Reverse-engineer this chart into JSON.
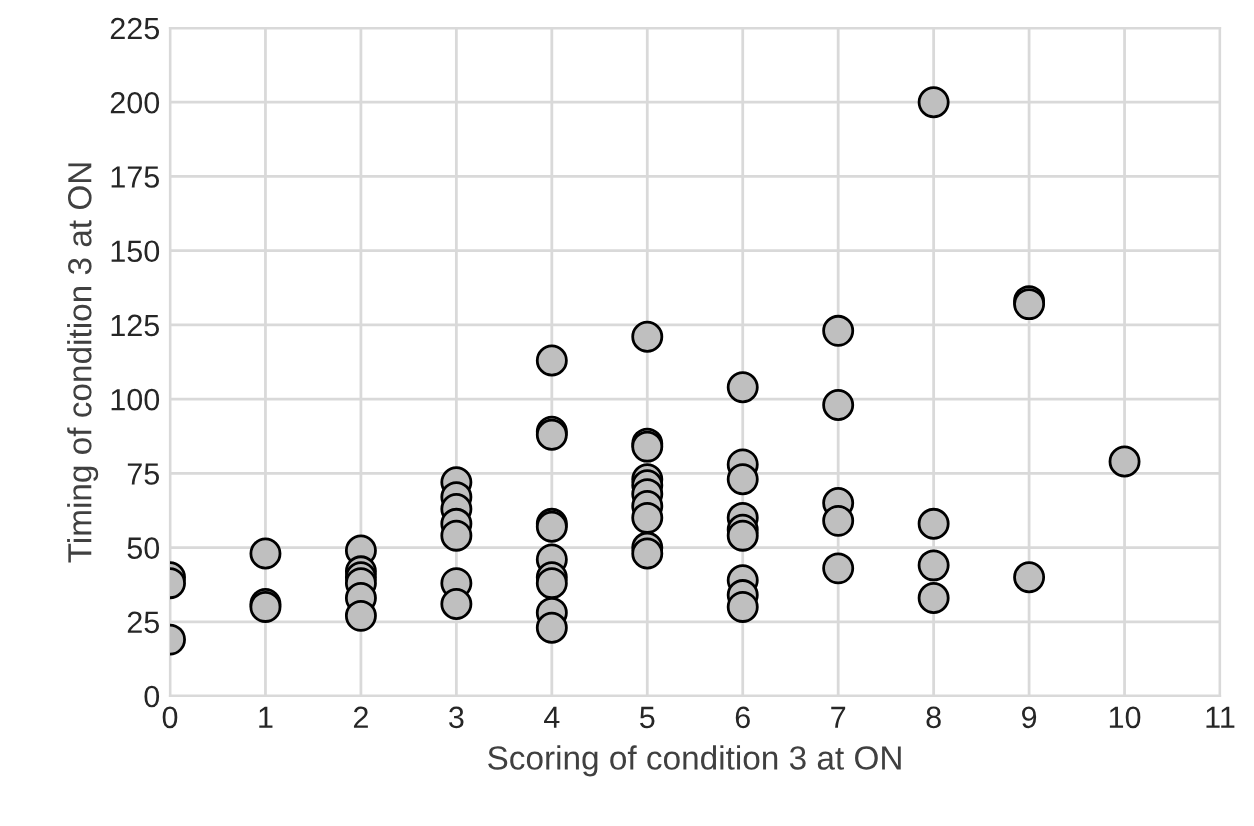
{
  "chart_data": {
    "type": "scatter",
    "xlabel": "Scoring of condition 3 at ON",
    "ylabel": "Timing of condition 3 at ON",
    "x": [
      0,
      0,
      0,
      1,
      1,
      1,
      2,
      2,
      2,
      2,
      2,
      2,
      3,
      3,
      3,
      3,
      3,
      3,
      3,
      4,
      4,
      4,
      4,
      4,
      4,
      4,
      4,
      4,
      4,
      5,
      5,
      5,
      5,
      5,
      5,
      5,
      5,
      5,
      5,
      6,
      6,
      6,
      6,
      6,
      6,
      6,
      6,
      6,
      7,
      7,
      7,
      7,
      7,
      8,
      8,
      8,
      8,
      9,
      9,
      9,
      10
    ],
    "series": [
      {
        "color": "#bfbfbf",
        "values": [
          40,
          38,
          19,
          48,
          31,
          30,
          49,
          42,
          40,
          38,
          33,
          27,
          72,
          67,
          63,
          58,
          54,
          38,
          31,
          113,
          89,
          88,
          58,
          57,
          46,
          40,
          38,
          28,
          23,
          121,
          85,
          84,
          73,
          71,
          68,
          64,
          60,
          50,
          48,
          104,
          78,
          73,
          60,
          56,
          54,
          39,
          34,
          30,
          123,
          98,
          65,
          59,
          43,
          200,
          58,
          44,
          33,
          133,
          132,
          40,
          79
        ]
      }
    ],
    "xlim": [
      0,
      11
    ],
    "xticks": [
      0,
      1,
      2,
      3,
      4,
      5,
      6,
      7,
      8,
      9,
      10,
      11
    ],
    "ylim": [
      0,
      225
    ],
    "yticks": [
      0,
      25,
      50,
      75,
      100,
      125,
      150,
      175,
      200,
      225
    ],
    "grid": true,
    "marker": "circle"
  }
}
